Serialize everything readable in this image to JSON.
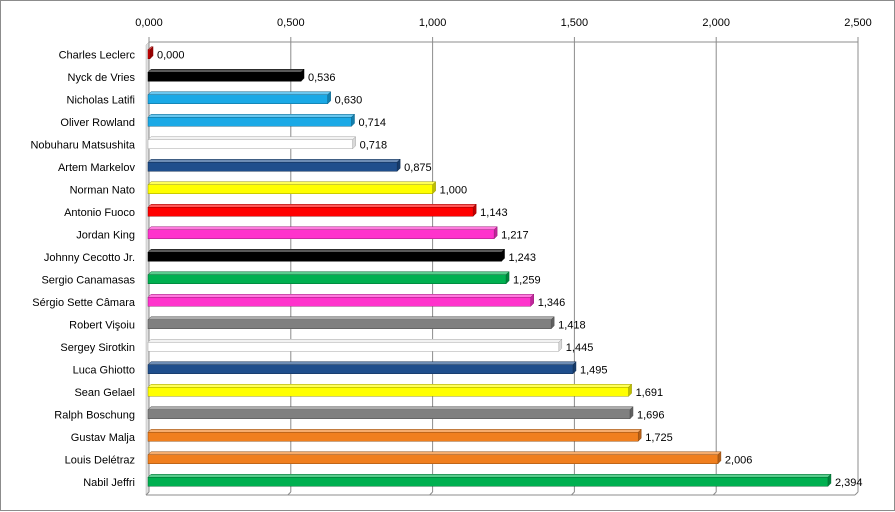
{
  "chart_data": {
    "type": "bar",
    "orientation": "horizontal",
    "title": "",
    "xlabel": "",
    "ylabel": "",
    "xlim": [
      0,
      2.5
    ],
    "x_ticks": [
      "0,000",
      "0,500",
      "1,000",
      "1,500",
      "2,000",
      "2,500"
    ],
    "x_axis_position": "top",
    "grid": true,
    "legend": "none",
    "categories": [
      "Charles Leclerc",
      "Nyck de Vries",
      "Nicholas Latifi",
      "Oliver Rowland",
      "Nobuharu Matsushita",
      "Artem Markelov",
      "Norman Nato",
      "Antonio Fuoco",
      "Jordan King",
      "Johnny Cecotto Jr.",
      "Sergio Canamasas",
      "Sérgio Sette Câmara",
      "Robert Vişoiu",
      "Sergey Sirotkin",
      "Luca Ghiotto",
      "Sean Gelael",
      "Ralph Boschung",
      "Gustav Malja",
      "Louis Delétraz",
      "Nabil Jeffri"
    ],
    "values": [
      0.0,
      0.536,
      0.63,
      0.714,
      0.718,
      0.875,
      1.0,
      1.143,
      1.217,
      1.243,
      1.259,
      1.346,
      1.418,
      1.445,
      1.495,
      1.691,
      1.696,
      1.725,
      2.006,
      2.394
    ],
    "value_labels": [
      "0,000",
      "0,536",
      "0,630",
      "0,714",
      "0,718",
      "0,875",
      "1,000",
      "1,143",
      "1,217",
      "1,243",
      "1,259",
      "1,346",
      "1,418",
      "1,445",
      "1,495",
      "1,691",
      "1,696",
      "1,725",
      "2,006",
      "2,394"
    ],
    "bar_colors": [
      "#cc0000",
      "#000000",
      "#1aa9e6",
      "#1aa9e6",
      "#ffffff",
      "#1f4e8c",
      "#ffff00",
      "#ff0000",
      "#ff33cc",
      "#000000",
      "#00b050",
      "#ff33cc",
      "#808080",
      "#ffffff",
      "#1f4e8c",
      "#ffff00",
      "#808080",
      "#f07f1e",
      "#f07f1e",
      "#00b050"
    ]
  }
}
